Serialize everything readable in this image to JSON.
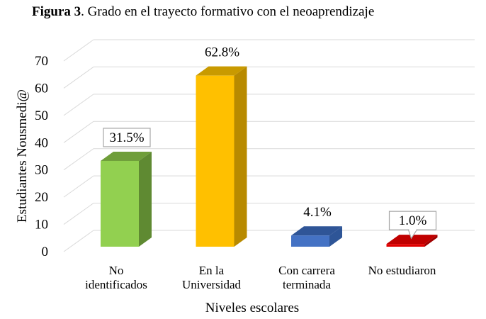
{
  "title_bold": "Figura 3",
  "title_rest": ". Grado en el trayecto formativo con el neoaprendizaje",
  "chart_data": {
    "type": "bar",
    "title": "Figura 3. Grado en el trayecto formativo con el neoaprendizaje",
    "categories": [
      [
        "No",
        "identificados"
      ],
      [
        "En la",
        "Universidad"
      ],
      [
        "Con carrera",
        "terminada"
      ],
      [
        "No estudiaron"
      ]
    ],
    "values": [
      31.5,
      62.8,
      4.1,
      1.0
    ],
    "data_labels": [
      "31.5%",
      "62.8%",
      "4.1%",
      "1.0%"
    ],
    "xlabel": "Niveles escolares",
    "ylabel": "Estudiantes Nousmedi@",
    "ylim": [
      0,
      70
    ],
    "yticks": [
      0,
      10,
      20,
      30,
      40,
      50,
      60,
      70
    ],
    "grid": true,
    "legend": "none",
    "colors": [
      {
        "front": "#92D050",
        "side": "#5F8A32",
        "top": "#6F9E3A"
      },
      {
        "front": "#FFC000",
        "side": "#B88A00",
        "top": "#C99A00"
      },
      {
        "front": "#4472C4",
        "side": "#2E5597",
        "top": "#2F5597"
      },
      {
        "front": "#E00000",
        "side": "#A00000",
        "top": "#C00000"
      }
    ]
  }
}
